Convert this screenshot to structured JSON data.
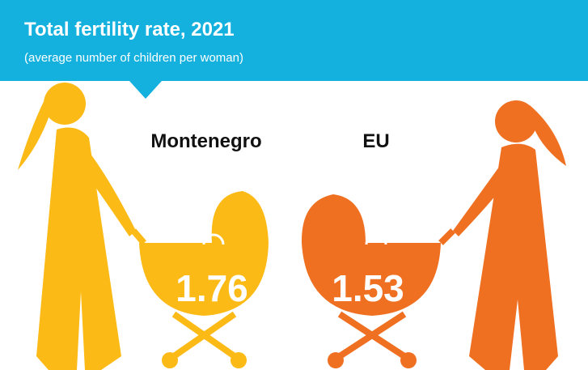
{
  "header": {
    "title": "Total fertility rate, 2021",
    "subtitle": "(average number of children per woman)"
  },
  "items": [
    {
      "label": "Montenegro",
      "value": "1.76"
    },
    {
      "label": "EU",
      "value": "1.53"
    }
  ]
}
